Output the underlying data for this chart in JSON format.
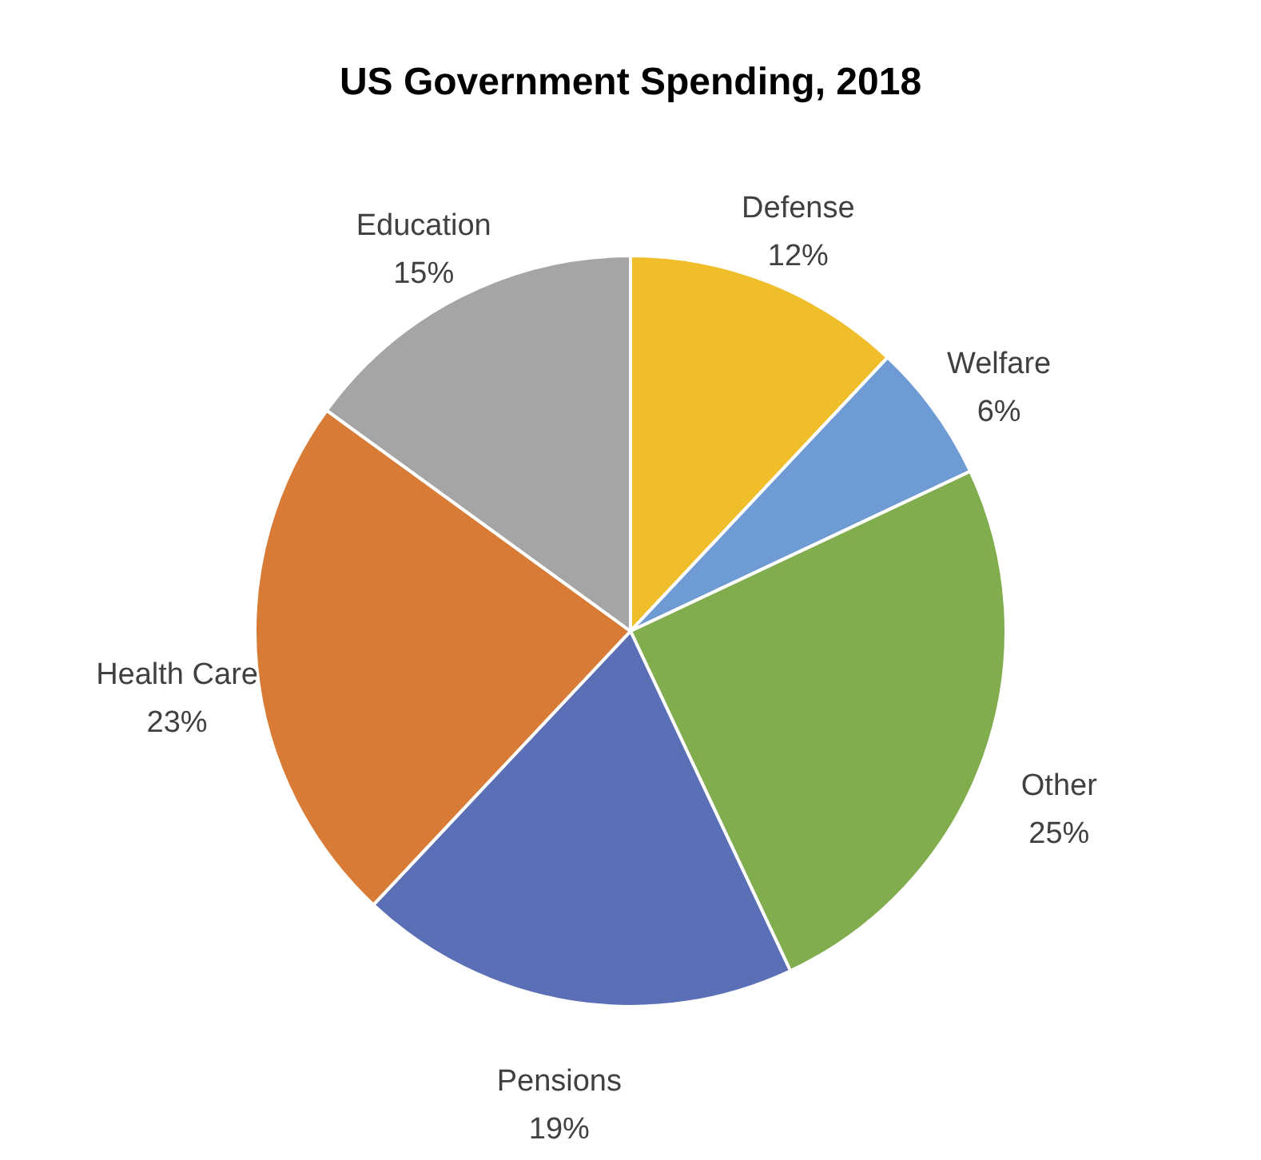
{
  "chart_data": {
    "type": "pie",
    "title": "US Government Spending, 2018",
    "categories": [
      "Defense",
      "Welfare",
      "Other",
      "Pensions",
      "Health Care",
      "Education"
    ],
    "values": [
      12,
      6,
      25,
      19,
      23,
      15
    ],
    "value_labels": [
      "12%",
      "6%",
      "25%",
      "19%",
      "23%",
      "15%"
    ],
    "colors": [
      "#f0bd2b",
      "#6f9bd5",
      "#82ad4f",
      "#5a6fb5",
      "#d77b37",
      "#a5a5a5"
    ],
    "legend": false
  }
}
